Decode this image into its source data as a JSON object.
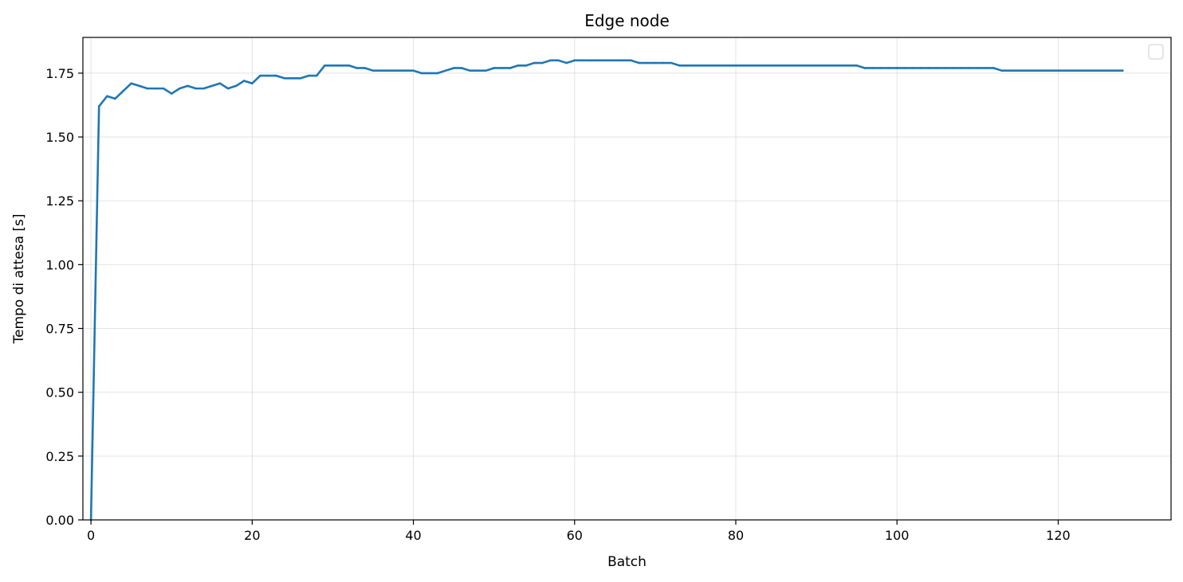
{
  "chart_data": {
    "type": "line",
    "title": "Edge node",
    "xlabel": "Batch",
    "ylabel": "Tempo di attesa [s]",
    "xlim": [
      -1,
      134
    ],
    "ylim": [
      0,
      1.89
    ],
    "xticks": [
      0,
      20,
      40,
      60,
      80,
      100,
      120
    ],
    "yticks": [
      0.0,
      0.25,
      0.5,
      0.75,
      1.0,
      1.25,
      1.5,
      1.75
    ],
    "xtick_labels": [
      "0",
      "20",
      "40",
      "60",
      "80",
      "100",
      "120"
    ],
    "ytick_labels": [
      "0.00",
      "0.25",
      "0.50",
      "0.75",
      "1.00",
      "1.25",
      "1.50",
      "1.75"
    ],
    "grid": true,
    "legend": {
      "placement": "top-right",
      "entries": []
    },
    "colors": {
      "series": "#1f77b4",
      "axes": "#000000",
      "grid": "#b0b0b0"
    },
    "series": [
      {
        "x": [
          0,
          1,
          2,
          3,
          4,
          5,
          6,
          7,
          8,
          9,
          10,
          11,
          12,
          13,
          14,
          15,
          16,
          17,
          18,
          19,
          20,
          21,
          22,
          23,
          24,
          25,
          26,
          27,
          28,
          29,
          30,
          31,
          32,
          33,
          34,
          35,
          36,
          37,
          38,
          39,
          40,
          41,
          42,
          43,
          44,
          45,
          46,
          47,
          48,
          49,
          50,
          51,
          52,
          53,
          54,
          55,
          56,
          57,
          58,
          59,
          60,
          61,
          62,
          63,
          64,
          65,
          66,
          67,
          68,
          69,
          70,
          71,
          72,
          73,
          74,
          75,
          76,
          77,
          78,
          79,
          80,
          81,
          82,
          83,
          84,
          85,
          86,
          87,
          88,
          89,
          90,
          91,
          92,
          93,
          94,
          95,
          96,
          97,
          98,
          99,
          100,
          101,
          102,
          103,
          104,
          105,
          106,
          107,
          108,
          109,
          110,
          111,
          112,
          113,
          114,
          115,
          116,
          117,
          118,
          119,
          120,
          121,
          122,
          123,
          124,
          125,
          126,
          127,
          128
        ],
        "values": [
          0.0,
          1.62,
          1.66,
          1.65,
          1.68,
          1.71,
          1.7,
          1.69,
          1.69,
          1.69,
          1.67,
          1.69,
          1.7,
          1.69,
          1.69,
          1.7,
          1.71,
          1.69,
          1.7,
          1.72,
          1.71,
          1.74,
          1.74,
          1.74,
          1.73,
          1.73,
          1.73,
          1.74,
          1.74,
          1.78,
          1.78,
          1.78,
          1.78,
          1.77,
          1.77,
          1.76,
          1.76,
          1.76,
          1.76,
          1.76,
          1.76,
          1.75,
          1.75,
          1.75,
          1.76,
          1.77,
          1.77,
          1.76,
          1.76,
          1.76,
          1.77,
          1.77,
          1.77,
          1.78,
          1.78,
          1.79,
          1.79,
          1.8,
          1.8,
          1.79,
          1.8,
          1.8,
          1.8,
          1.8,
          1.8,
          1.8,
          1.8,
          1.8,
          1.79,
          1.79,
          1.79,
          1.79,
          1.79,
          1.78,
          1.78,
          1.78,
          1.78,
          1.78,
          1.78,
          1.78,
          1.78,
          1.78,
          1.78,
          1.78,
          1.78,
          1.78,
          1.78,
          1.78,
          1.78,
          1.78,
          1.78,
          1.78,
          1.78,
          1.78,
          1.78,
          1.78,
          1.77,
          1.77,
          1.77,
          1.77,
          1.77,
          1.77,
          1.77,
          1.77,
          1.77,
          1.77,
          1.77,
          1.77,
          1.77,
          1.77,
          1.77,
          1.77,
          1.77,
          1.76,
          1.76,
          1.76,
          1.76,
          1.76,
          1.76,
          1.76,
          1.76,
          1.76,
          1.76,
          1.76,
          1.76,
          1.76,
          1.76,
          1.76,
          1.76
        ]
      }
    ]
  }
}
